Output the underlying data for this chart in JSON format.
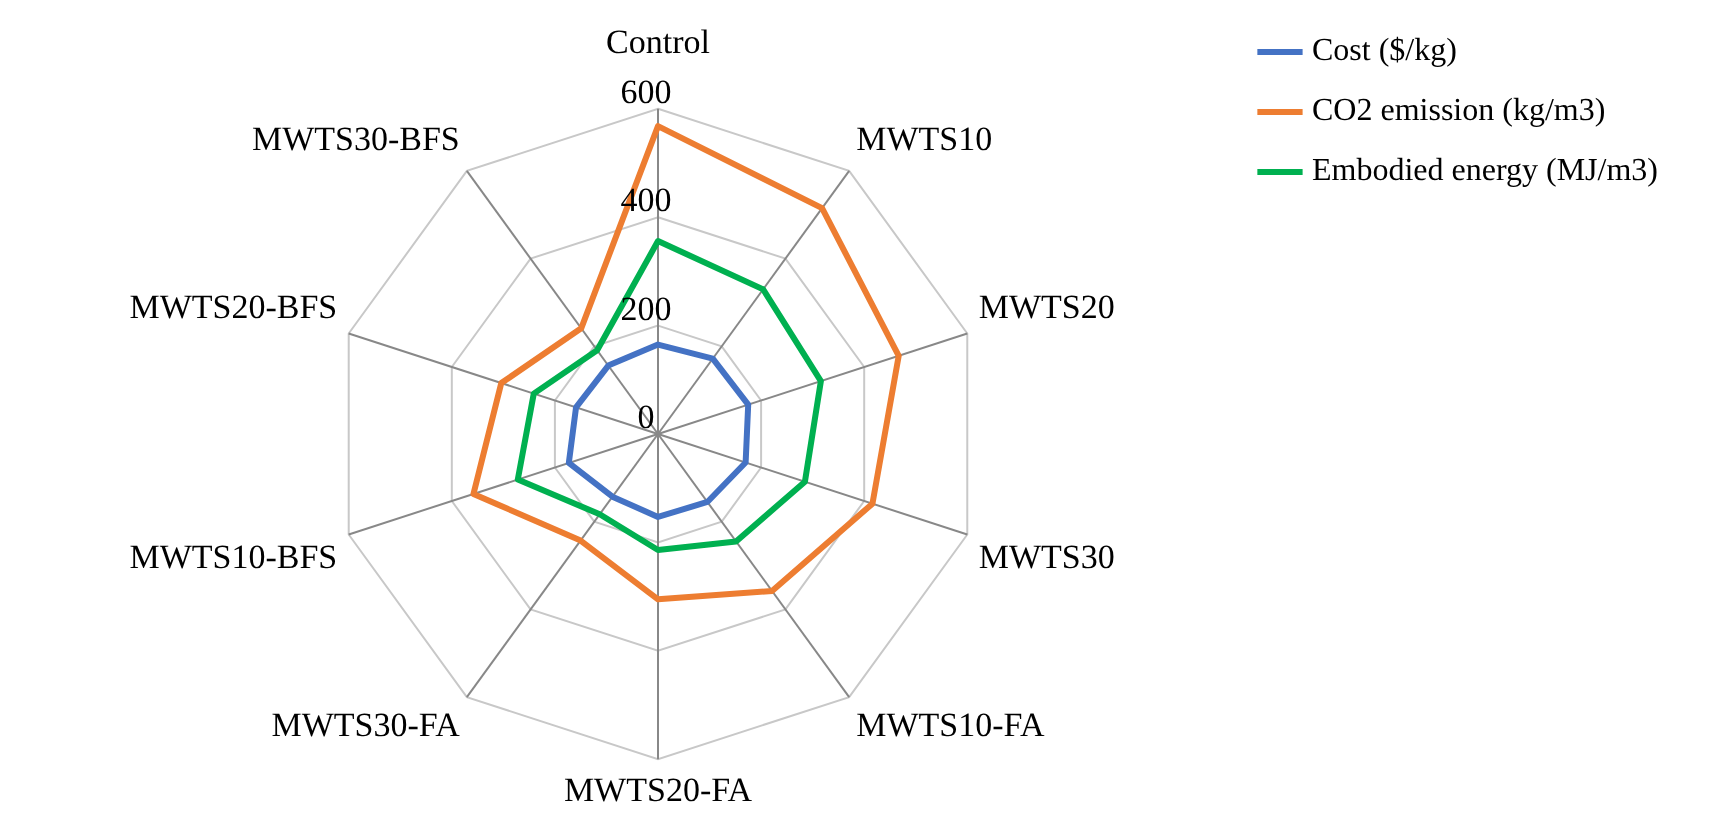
{
  "chart_data": {
    "type": "radar",
    "categories": [
      "Control",
      "MWTS10",
      "MWTS20",
      "MWTS30",
      "MWTS10-FA",
      "MWTS20-FA",
      "MWTS30-FA",
      "MWTS10-BFS",
      "MWTS20-BFS",
      "MWTS30-BFS"
    ],
    "series": [
      {
        "name": "Cost ($/kg)",
        "color": "#4472c4",
        "values": [
          165,
          172,
          175,
          170,
          155,
          153,
          143,
          173,
          159,
          156
        ]
      },
      {
        "name": "CO2 emission (kg/m3)",
        "color": "#ed7d31",
        "values": [
          568,
          515,
          467,
          416,
          358,
          305,
          243,
          358,
          304,
          241
        ]
      },
      {
        "name": "Embodied energy (MJ/m3)",
        "color": "#00b050",
        "values": [
          356,
          330,
          316,
          285,
          245,
          214,
          183,
          272,
          241,
          191
        ]
      }
    ],
    "ylim": [
      0,
      600
    ],
    "yticks": [
      0,
      200,
      400,
      600
    ],
    "grid": true,
    "legend": "top right",
    "marker": "none",
    "line_style": "solid"
  }
}
